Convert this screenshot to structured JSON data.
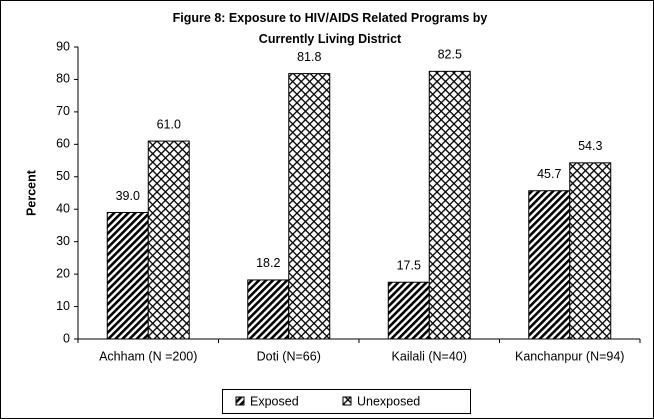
{
  "chart_data": {
    "type": "bar",
    "title": "Figure 8: Exposure to HIV/AIDS Related Programs by Currently Living District",
    "y_label": "Percent",
    "categories": [
      "Achham  (N =200)",
      "Doti (N=66)",
      "Kailali (N=40)",
      "Kanchanpur (N=94)"
    ],
    "series": [
      {
        "name": "Exposed",
        "color": "#000000",
        "pattern": "diagonal",
        "values": [
          39.0,
          18.2,
          17.5,
          45.7
        ],
        "value_labels": [
          "39.0",
          "18.2",
          "17.5",
          "45.7"
        ]
      },
      {
        "name": "Unexposed",
        "color": "#000000",
        "pattern": "crosshatch",
        "values": [
          61.0,
          81.8,
          82.5,
          54.3
        ],
        "value_labels": [
          "61.0",
          "81.8",
          "82.5",
          "54.3"
        ]
      }
    ],
    "ylim": [
      0,
      90
    ],
    "yticks": [
      0,
      10,
      20,
      30,
      40,
      50,
      60,
      70,
      80,
      90
    ],
    "legend": "bottom"
  }
}
